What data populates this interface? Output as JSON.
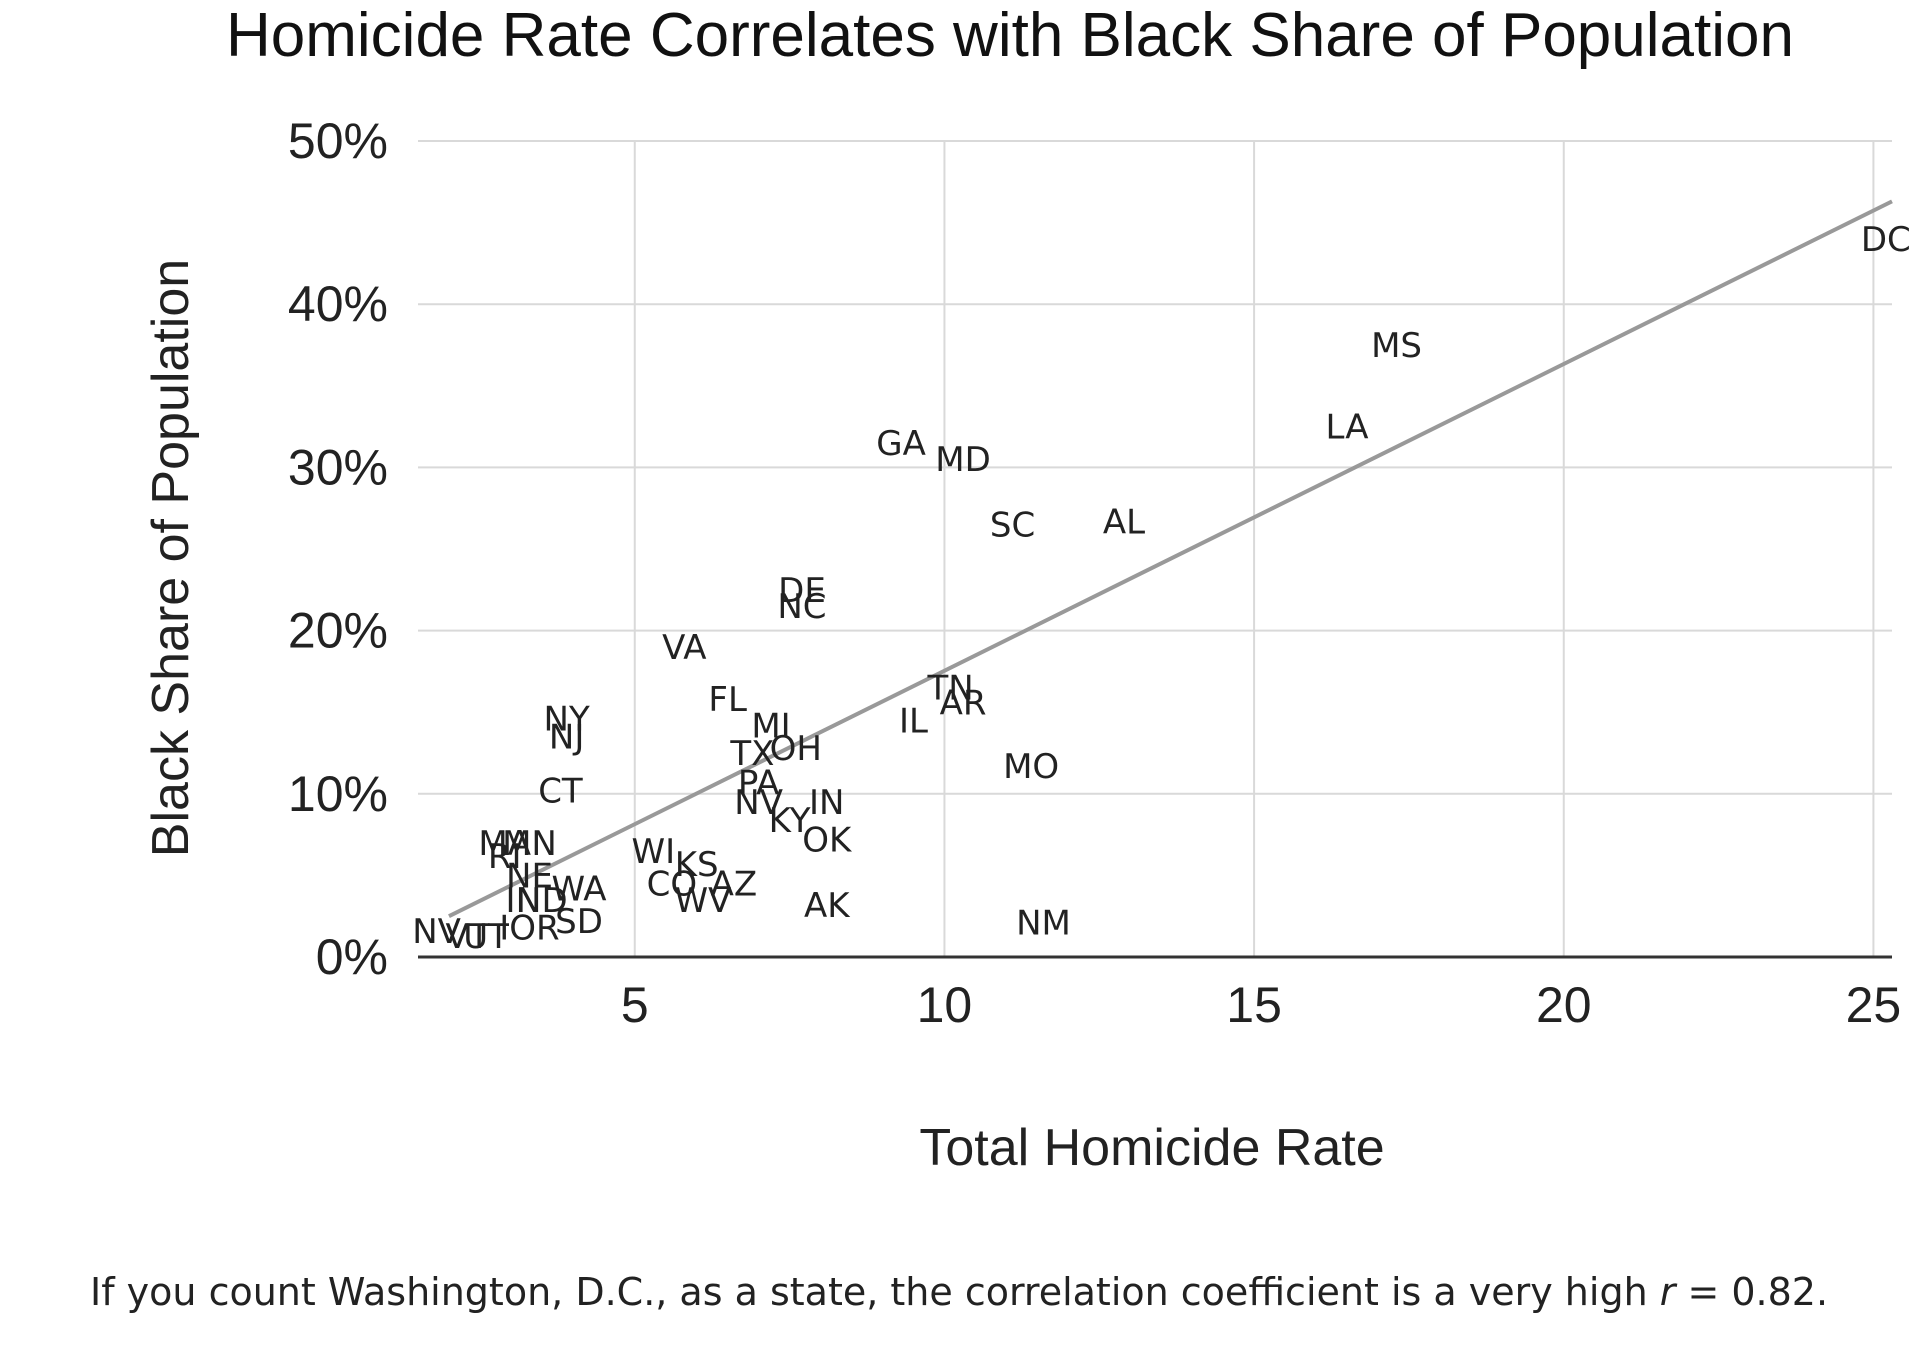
{
  "chart_data": {
    "type": "scatter",
    "title": "Homicide Rate Correlates with Black Share of Population",
    "xlabel": "Total Homicide Rate",
    "ylabel": "Black Share of Population",
    "xlim": [
      1.5,
      25.3
    ],
    "ylim": [
      0,
      50
    ],
    "x_ticks": [
      {
        "value": 5,
        "label": "5"
      },
      {
        "value": 10,
        "label": "10"
      },
      {
        "value": 15,
        "label": "15"
      },
      {
        "value": 20,
        "label": "20"
      },
      {
        "value": 25,
        "label": "25"
      }
    ],
    "y_ticks": [
      {
        "value": 0,
        "label": "0%"
      },
      {
        "value": 10,
        "label": "10%"
      },
      {
        "value": 20,
        "label": "20%"
      },
      {
        "value": 30,
        "label": "30%"
      },
      {
        "value": 40,
        "label": "40%"
      },
      {
        "value": 50,
        "label": "50%"
      }
    ],
    "grid": true,
    "legend": "none",
    "trendline": {
      "x": [
        2.0,
        25.3
      ],
      "y": [
        2.5,
        46.3
      ],
      "color": "#999999"
    },
    "points": [
      {
        "label": "DC",
        "x": 25.2,
        "y": 44.0
      },
      {
        "label": "MS",
        "x": 17.3,
        "y": 37.5
      },
      {
        "label": "LA",
        "x": 16.5,
        "y": 32.5
      },
      {
        "label": "GA",
        "x": 9.3,
        "y": 31.5
      },
      {
        "label": "MD",
        "x": 10.3,
        "y": 30.5
      },
      {
        "label": "SC",
        "x": 11.1,
        "y": 26.5
      },
      {
        "label": "AL",
        "x": 12.9,
        "y": 26.7
      },
      {
        "label": "DE",
        "x": 7.7,
        "y": 22.5
      },
      {
        "label": "NC",
        "x": 7.7,
        "y": 21.5
      },
      {
        "label": "VA",
        "x": 5.8,
        "y": 19.0
      },
      {
        "label": "TN",
        "x": 10.1,
        "y": 16.5
      },
      {
        "label": "AR",
        "x": 10.3,
        "y": 15.6
      },
      {
        "label": "IL",
        "x": 9.5,
        "y": 14.5
      },
      {
        "label": "FL",
        "x": 6.5,
        "y": 15.8
      },
      {
        "label": "MI",
        "x": 7.2,
        "y": 14.2
      },
      {
        "label": "TX",
        "x": 6.9,
        "y": 12.5
      },
      {
        "label": "OH",
        "x": 7.6,
        "y": 12.8
      },
      {
        "label": "PA",
        "x": 7.0,
        "y": 10.7
      },
      {
        "label": "NV",
        "x": 7.0,
        "y": 9.5
      },
      {
        "label": "IN",
        "x": 8.1,
        "y": 9.5
      },
      {
        "label": "KY",
        "x": 7.5,
        "y": 8.4
      },
      {
        "label": "OK",
        "x": 8.1,
        "y": 7.2
      },
      {
        "label": "MO",
        "x": 11.4,
        "y": 11.7
      },
      {
        "label": "NY",
        "x": 3.9,
        "y": 14.6
      },
      {
        "label": "NJ",
        "x": 3.9,
        "y": 13.5
      },
      {
        "label": "CT",
        "x": 3.8,
        "y": 10.2
      },
      {
        "label": "MA",
        "x": 2.9,
        "y": 7.0
      },
      {
        "label": "MN",
        "x": 3.3,
        "y": 7.0
      },
      {
        "label": "RI",
        "x": 2.9,
        "y": 6.2
      },
      {
        "label": "NE",
        "x": 3.3,
        "y": 5.0
      },
      {
        "label": "WI",
        "x": 5.3,
        "y": 6.5
      },
      {
        "label": "KS",
        "x": 6.0,
        "y": 5.7
      },
      {
        "label": "CO",
        "x": 5.6,
        "y": 4.5
      },
      {
        "label": "WV",
        "x": 6.1,
        "y": 3.5
      },
      {
        "label": "AZ",
        "x": 6.6,
        "y": 4.5
      },
      {
        "label": "IN",
        "x": 3.2,
        "y": 3.5
      },
      {
        "label": "ND",
        "x": 3.5,
        "y": 3.5
      },
      {
        "label": "WA",
        "x": 4.1,
        "y": 4.2
      },
      {
        "label": "AK",
        "x": 8.1,
        "y": 3.2
      },
      {
        "label": "NM",
        "x": 11.6,
        "y": 2.1
      },
      {
        "label": "NV",
        "x": 1.8,
        "y": 1.6
      },
      {
        "label": "VT",
        "x": 2.3,
        "y": 1.3
      },
      {
        "label": "UT",
        "x": 2.6,
        "y": 1.3
      },
      {
        "label": "IOR",
        "x": 3.3,
        "y": 1.8
      },
      {
        "label": "SD",
        "x": 4.1,
        "y": 2.2
      }
    ]
  },
  "caption": {
    "before": "If you count Washington, D.C., as a state, the correlation coefficient is a very high ",
    "variable": "r",
    "after": " = 0.82."
  }
}
